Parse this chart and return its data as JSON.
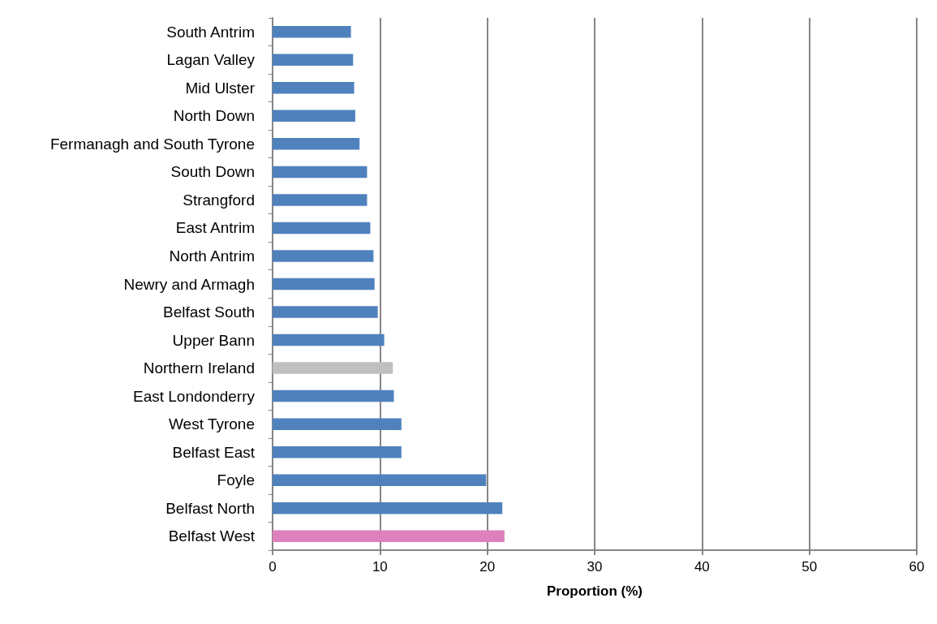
{
  "chart_data": {
    "type": "bar",
    "orientation": "horizontal",
    "xlabel": "Proportion (%)",
    "categories": [
      "South Antrim",
      "Lagan Valley",
      "Mid Ulster",
      "North Down",
      "Fermanagh and South Tyrone",
      "South Down",
      "Strangford",
      "East Antrim",
      "North Antrim",
      "Newry and Armagh",
      "Belfast South",
      "Upper Bann",
      "Northern Ireland",
      "East Londonderry",
      "West Tyrone",
      "Belfast East",
      "Foyle",
      "Belfast North",
      "Belfast West"
    ],
    "values": [
      7.3,
      7.5,
      7.6,
      7.7,
      8.1,
      8.8,
      8.8,
      9.1,
      9.4,
      9.5,
      9.8,
      10.4,
      11.2,
      11.3,
      12.0,
      12.0,
      19.9,
      21.4,
      21.6
    ],
    "colors": [
      "#4f81bd",
      "#4f81bd",
      "#4f81bd",
      "#4f81bd",
      "#4f81bd",
      "#4f81bd",
      "#4f81bd",
      "#4f81bd",
      "#4f81bd",
      "#4f81bd",
      "#4f81bd",
      "#4f81bd",
      "#bfbfbf",
      "#4f81bd",
      "#4f81bd",
      "#4f81bd",
      "#4f81bd",
      "#4f81bd",
      "#dd80bd"
    ],
    "xlim": [
      0,
      60
    ],
    "xticks": [
      0,
      10,
      20,
      30,
      40,
      50,
      60
    ],
    "grid": "x"
  }
}
